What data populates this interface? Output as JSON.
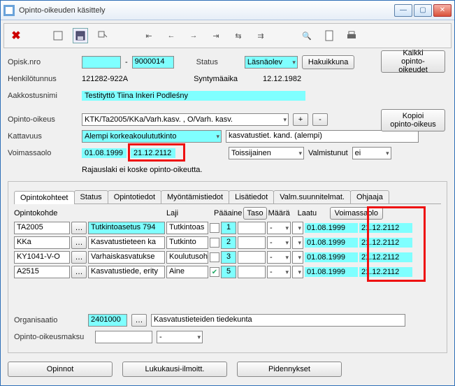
{
  "window": {
    "title": "Opinto-oikeuden käsittely"
  },
  "labels": {
    "opisknro": "Opisk.nro",
    "henkilotunnus": "Henkilötunnus",
    "aakkostusnimi": "Aakkostusnimi",
    "status": "Status",
    "syntymaaika": "Syntymäaika",
    "opintooikeus": "Opinto-oikeus",
    "kattavuus": "Kattavuus",
    "voimassaolo": "Voimassaolo",
    "rajauslaki": "Rajauslaki ei koske opinto-oikeutta.",
    "valmistunut": "Valmistunut",
    "organisaatio": "Organisaatio",
    "opintooikeusmaksu": "Opinto-oikeusmaksu"
  },
  "values": {
    "opisknro_a": "",
    "opisknro_b": "9000014",
    "henkilotunnus": "121282-922A",
    "aakkostusnimi": "Testityttö Tiina Inkeri Podleśny",
    "status": "Läsnäolev",
    "syntymaaika": "12.12.1982",
    "opintooikeus": "KTK/Ta2005/KKa/Varh.kasv. , O/Varh. kasv.",
    "kattavuus": "Alempi korkeakoulututkinto",
    "kattavuus2": "kasvatustiet. kand. (alempi)",
    "vm_start": "01.08.1999",
    "vm_end": "21.12.2112",
    "toissijainen": "Toissijainen",
    "valmistunut": "ei",
    "organisaatio_code": "2401000",
    "organisaatio_name": "Kasvatustieteiden tiedekunta",
    "maksu1": "",
    "maksu2": "-"
  },
  "buttons": {
    "hakuikkuna": "Hakuikkuna",
    "kaikki1": "Kaikki",
    "kaikki2": "opinto-oikeudet",
    "kopioi1": "Kopioi",
    "kopioi2": "opinto-oikeus",
    "plus": "+",
    "minus": "-",
    "voimassaolo": "Voimassaolo",
    "taso": "Taso",
    "opinnot": "Opinnot",
    "lukuilm": "Lukukausi-ilmoitt.",
    "pidennykset": "Pidennykset"
  },
  "tabs": [
    "Opintokohteet",
    "Status",
    "Opintotiedot",
    "Myöntämistiedot",
    "Lisätiedot",
    "Valm.suunnitelmat.",
    "Ohjaaja"
  ],
  "gridhdr": {
    "opintokohde": "Opintokohde",
    "laji": "Laji",
    "paaaine": "Pääaine",
    "maara": "Määrä",
    "laatu": "Laatu"
  },
  "rows": [
    {
      "code": "TA2005",
      "name": "Tutkintoasetus 794",
      "laji": "Tutkintoas",
      "paa": false,
      "taso": "1",
      "maara": "",
      "laatu": "-",
      "d1": "01.08.1999",
      "d2": "21.12.2112",
      "nameHl": true
    },
    {
      "code": "KKa",
      "name": "Kasvatustieteen ka",
      "laji": "Tutkinto",
      "paa": false,
      "taso": "2",
      "maara": "",
      "laatu": "-",
      "d1": "01.08.1999",
      "d2": "21.12.2112",
      "nameHl": false
    },
    {
      "code": "KY1041-V-O",
      "name": "Varhaiskasvatukse",
      "laji": "Koulutusoh",
      "paa": false,
      "taso": "3",
      "maara": "",
      "laatu": "-",
      "d1": "01.08.1999",
      "d2": "21.12.2112",
      "nameHl": false
    },
    {
      "code": "A2515",
      "name": "Kasvatustiede, erity",
      "laji": "Aine",
      "paa": true,
      "taso": "5",
      "maara": "",
      "laatu": "-",
      "d1": "01.08.1999",
      "d2": "21.12.2112",
      "nameHl": false
    }
  ],
  "colors": {
    "highlight": "#7fffff",
    "redbox": "#e11"
  }
}
